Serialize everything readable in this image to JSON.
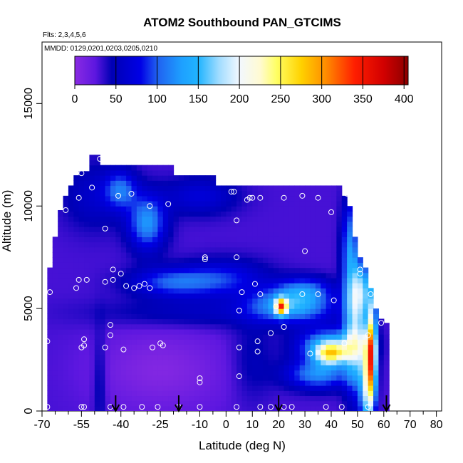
{
  "chart_data": {
    "type": "heatmap",
    "title": "ATOM2 Southbound PAN_GTCIMS",
    "subtitle_flights": "Flts: 2,3,4,5,6",
    "subtitle_dates": "MMDD: 0129,0201,0203,0205,0210",
    "xlabel": "Latitude (deg N)",
    "ylabel": "Altitude (m)",
    "xlim": [
      -70,
      82
    ],
    "ylim": [
      0,
      18000
    ],
    "x_ticks": [
      -70,
      -55,
      -40,
      -25,
      -10,
      0,
      10,
      20,
      30,
      40,
      50,
      60,
      70,
      80
    ],
    "x_minor_ticks": [
      -65,
      -60,
      -50,
      -45,
      -35,
      -30,
      -20,
      -15,
      -5,
      5,
      15,
      25,
      35,
      45,
      55,
      65,
      75
    ],
    "y_ticks": [
      0,
      5000,
      10000,
      15000
    ],
    "colorbar": {
      "ticks": [
        0,
        50,
        100,
        150,
        200,
        250,
        300,
        350,
        400
      ],
      "range": [
        0,
        405
      ],
      "stops": [
        {
          "v": 0,
          "c": "#8a2be2"
        },
        {
          "v": 25,
          "c": "#5d17e0"
        },
        {
          "v": 45,
          "c": "#0000b4"
        },
        {
          "v": 80,
          "c": "#0000e6"
        },
        {
          "v": 100,
          "c": "#2060f0"
        },
        {
          "v": 130,
          "c": "#1ea0ff"
        },
        {
          "v": 150,
          "c": "#20b4ff"
        },
        {
          "v": 175,
          "c": "#a0dcff"
        },
        {
          "v": 200,
          "c": "#f2f8ff"
        },
        {
          "v": 225,
          "c": "#fffad2"
        },
        {
          "v": 245,
          "c": "#ffff64"
        },
        {
          "v": 275,
          "c": "#ffd200"
        },
        {
          "v": 305,
          "c": "#ff8c00"
        },
        {
          "v": 340,
          "c": "#ff1e00"
        },
        {
          "v": 375,
          "c": "#d20000"
        },
        {
          "v": 405,
          "c": "#8b0000"
        }
      ]
    },
    "flight_arrows_latitude": [
      -42,
      -18,
      20,
      61
    ],
    "coverage_profile": [
      [
        -68,
        7000
      ],
      [
        -66,
        8500
      ],
      [
        -64,
        9800
      ],
      [
        -62,
        10500
      ],
      [
        -60,
        11000
      ],
      [
        -58,
        11500
      ],
      [
        -56,
        11700
      ],
      [
        -52,
        12500
      ],
      [
        -50,
        12500
      ],
      [
        -48,
        12000
      ],
      [
        -20,
        12000
      ],
      [
        -19,
        11500
      ],
      [
        -5,
        11500
      ],
      [
        -4,
        11000
      ],
      [
        30,
        11000
      ],
      [
        45,
        10500
      ],
      [
        47,
        10000
      ],
      [
        48,
        9500
      ],
      [
        49,
        8500
      ],
      [
        50,
        8000
      ],
      [
        51,
        7500
      ],
      [
        53,
        7000
      ],
      [
        55,
        6000
      ],
      [
        56,
        5500
      ],
      [
        57,
        5000
      ],
      [
        58,
        4800
      ],
      [
        59,
        4500
      ],
      [
        60,
        4300
      ],
      [
        62,
        4300
      ]
    ],
    "coverage_xmin": -68,
    "sample_points": [
      [
        -68,
        200
      ],
      [
        -55,
        200
      ],
      [
        -54,
        200
      ],
      [
        -44,
        200
      ],
      [
        -39,
        200
      ],
      [
        -32,
        200
      ],
      [
        -26,
        200
      ],
      [
        -18,
        200
      ],
      [
        -10,
        200
      ],
      [
        4,
        200
      ],
      [
        13,
        200
      ],
      [
        17,
        200
      ],
      [
        22,
        200
      ],
      [
        25,
        200
      ],
      [
        38,
        200
      ],
      [
        44,
        200
      ],
      [
        54,
        200
      ],
      [
        -68,
        3400
      ],
      [
        -55,
        3100
      ],
      [
        -54,
        3200
      ],
      [
        -54,
        3500
      ],
      [
        -46,
        3100
      ],
      [
        -44,
        3700
      ],
      [
        -44,
        4200
      ],
      [
        -39,
        3000
      ],
      [
        -28,
        3100
      ],
      [
        -25,
        3300
      ],
      [
        -24,
        3200
      ],
      [
        5,
        3100
      ],
      [
        12,
        2900
      ],
      [
        12,
        3400
      ],
      [
        17,
        3800
      ],
      [
        22,
        4100
      ],
      [
        32,
        2800
      ],
      [
        45,
        3300
      ],
      [
        54,
        3700
      ],
      [
        -10,
        1600
      ],
      [
        -10,
        1400
      ],
      [
        5,
        1700
      ],
      [
        -67,
        5800
      ],
      [
        -57,
        6000
      ],
      [
        -56,
        6400
      ],
      [
        -53,
        6400
      ],
      [
        -46,
        6300
      ],
      [
        -43,
        6400
      ],
      [
        -43,
        6900
      ],
      [
        -40,
        6700
      ],
      [
        -38,
        6100
      ],
      [
        -35,
        6000
      ],
      [
        -33,
        6100
      ],
      [
        -31,
        6200
      ],
      [
        -29,
        6000
      ],
      [
        5,
        4900
      ],
      [
        6,
        5800
      ],
      [
        11,
        6200
      ],
      [
        13,
        5700
      ],
      [
        19,
        5100
      ],
      [
        29,
        5700
      ],
      [
        35,
        5700
      ],
      [
        41,
        5400
      ],
      [
        55,
        5700
      ],
      [
        59,
        4300
      ],
      [
        51,
        6900
      ],
      [
        51,
        6700
      ],
      [
        -61,
        9800
      ],
      [
        -56,
        10400
      ],
      [
        -55,
        11600
      ],
      [
        -51,
        10900
      ],
      [
        -48,
        12300
      ],
      [
        -46,
        8900
      ],
      [
        -41,
        10500
      ],
      [
        -36,
        10600
      ],
      [
        -29,
        10000
      ],
      [
        -22,
        10100
      ],
      [
        -10,
        11900
      ],
      [
        -8,
        7400
      ],
      [
        -8,
        7500
      ],
      [
        2,
        10700
      ],
      [
        3,
        10700
      ],
      [
        4,
        9300
      ],
      [
        4,
        7500
      ],
      [
        8,
        10300
      ],
      [
        9,
        10400
      ],
      [
        10,
        10400
      ],
      [
        13,
        10400
      ],
      [
        22,
        10400
      ],
      [
        29,
        10500
      ],
      [
        30,
        7800
      ],
      [
        35,
        10400
      ],
      [
        40,
        9700
      ],
      [
        46,
        10600
      ]
    ]
  }
}
